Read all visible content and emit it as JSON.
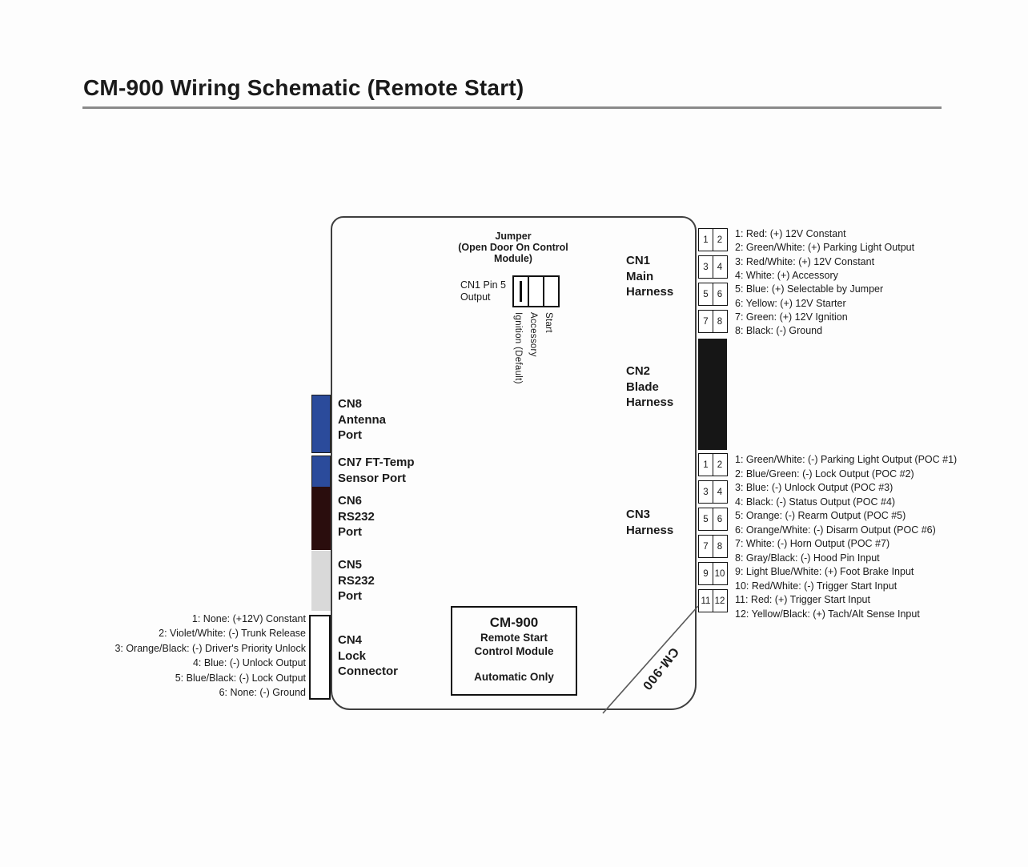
{
  "title": "CM-900 Wiring Schematic (Remote Start)",
  "module": {
    "jumper": {
      "heading": "Jumper\n(Open Door On Control\nModule)",
      "pin5_label": "CN1 Pin 5\nOutput",
      "positions": [
        "Ignition (Default)",
        "Accessory",
        "Start"
      ]
    },
    "center_box": {
      "model": "CM-900",
      "line2": "Remote Start",
      "line3": "Control Module",
      "footer": "Automatic Only"
    },
    "diagonal_label": "CM-900"
  },
  "connectors": {
    "cn1": {
      "label": "CN1\nMain\nHarness",
      "pins": [
        "1",
        "2",
        "3",
        "4",
        "5",
        "6",
        "7",
        "8"
      ],
      "pin_list": [
        "1: Red: (+) 12V Constant",
        "2: Green/White: (+) Parking Light Output",
        "3: Red/White: (+) 12V Constant",
        "4: White: (+) Accessory",
        "5: Blue: (+) Selectable by Jumper",
        "6: Yellow: (+) 12V Starter",
        "7: Green: (+) 12V Ignition",
        "8: Black: (-) Ground"
      ]
    },
    "cn2": {
      "label": "CN2\nBlade\nHarness"
    },
    "cn3": {
      "label": "CN3\nHarness",
      "pins": [
        "1",
        "2",
        "3",
        "4",
        "5",
        "6",
        "7",
        "8",
        "9",
        "10",
        "11",
        "12"
      ],
      "pin_list": [
        "1: Green/White: (-) Parking Light Output (POC #1)",
        "2: Blue/Green: (-) Lock Output (POC #2)",
        "3: Blue: (-) Unlock Output (POC #3)",
        "4: Black: (-) Status Output (POC #4)",
        "5: Orange: (-) Rearm Output (POC #5)",
        "6: Orange/White: (-) Disarm Output (POC #6)",
        "7: White: (-) Horn Output (POC #7)",
        "8: Gray/Black: (-) Hood Pin Input",
        "9: Light Blue/White: (+) Foot Brake Input",
        "10: Red/White: (-) Trigger Start Input",
        "11: Red: (+) Trigger Start Input",
        "12: Yellow/Black: (+) Tach/Alt Sense Input"
      ]
    },
    "cn4": {
      "label": "CN4\nLock\nConnector",
      "pin_list": [
        "1: None: (+12V) Constant",
        "2: Violet/White: (-) Trunk Release",
        "3: Orange/Black: (-) Driver's Priority Unlock",
        "4: Blue: (-) Unlock Output",
        "5: Blue/Black: (-) Lock Output",
        "6: None: (-) Ground"
      ]
    },
    "cn5": {
      "label": "CN5\nRS232\nPort"
    },
    "cn6": {
      "label": "CN6\nRS232\nPort"
    },
    "cn7": {
      "label": "CN7 FT-Temp\nSensor Port"
    },
    "cn8": {
      "label": "CN8\nAntenna\nPort"
    }
  },
  "colors": {
    "antenna_blue": "#2b4b9b",
    "rs232_dark_maroon": "#2a0d0d",
    "rs232_light_gray": "#d9d9d9",
    "blade_black": "#161616",
    "underline_gray": "#8a8a8a"
  }
}
